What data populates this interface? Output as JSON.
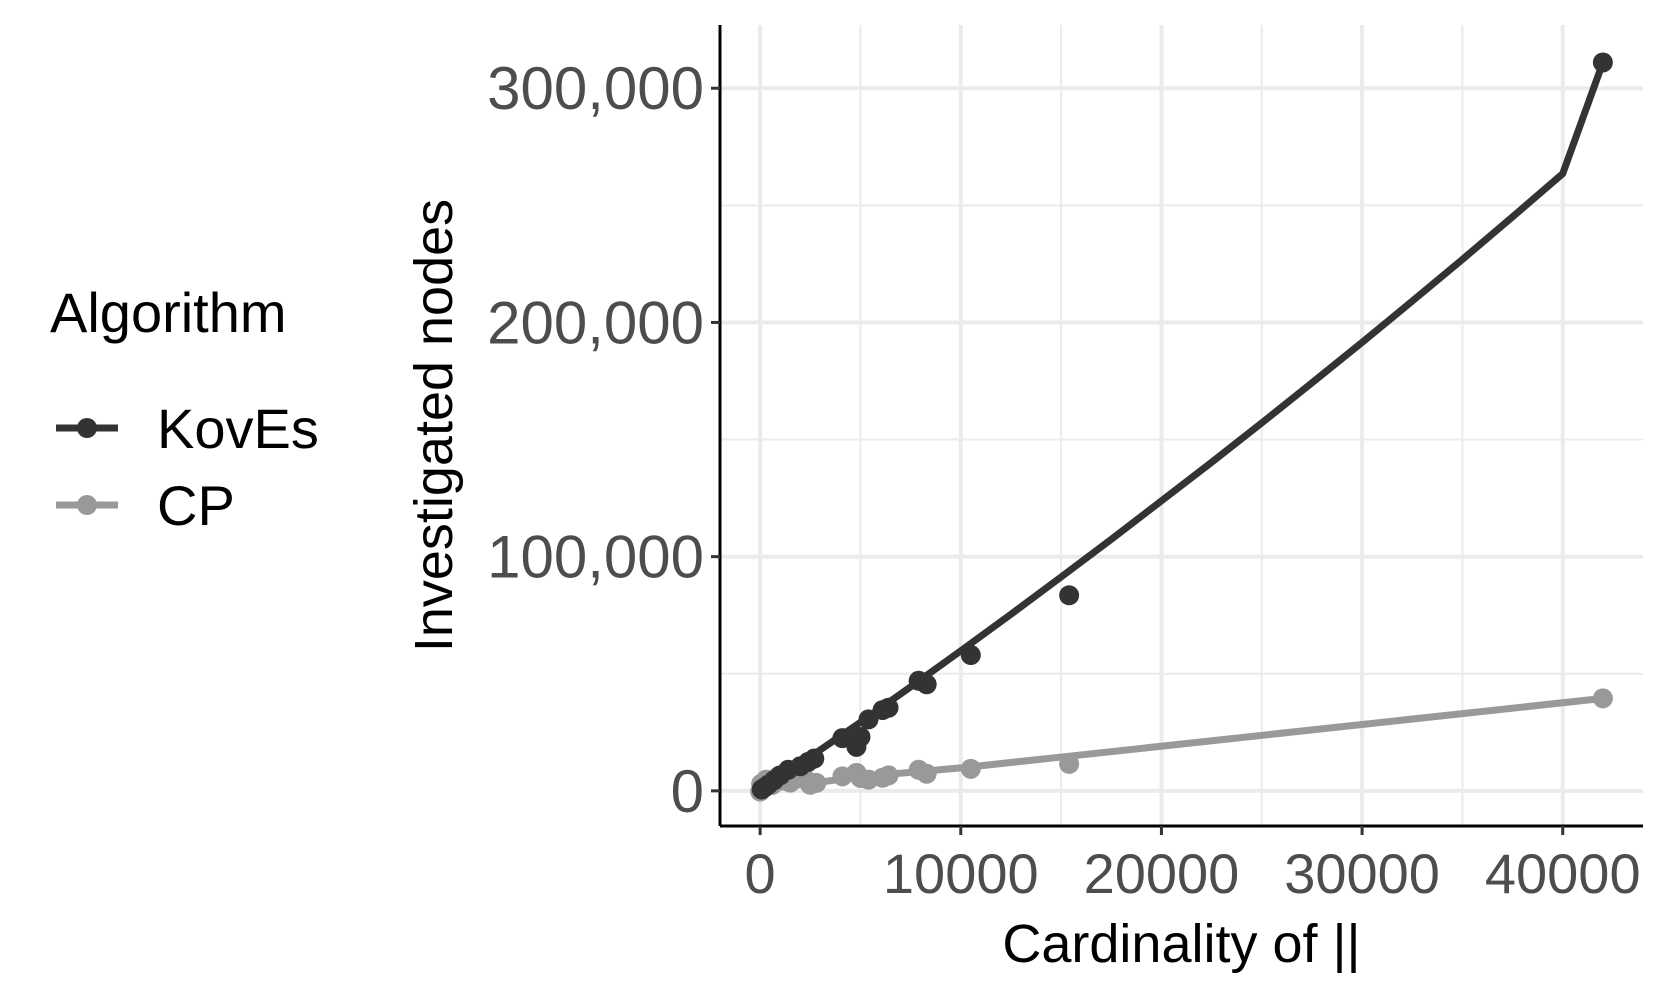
{
  "chart_data": {
    "type": "scatter",
    "title": "",
    "xlabel": "Cardinality of ||",
    "ylabel": "Investigated nodes",
    "xlim": [
      -2000,
      44000
    ],
    "ylim": [
      -15000,
      327000
    ],
    "xticks": [
      0,
      10000,
      20000,
      30000,
      40000
    ],
    "xtick_labels": [
      "0",
      "10000",
      "20000",
      "30000",
      "40000"
    ],
    "xminor": [
      5000,
      15000,
      25000,
      35000
    ],
    "yticks": [
      0,
      100000,
      200000,
      300000
    ],
    "ytick_labels": [
      "0",
      "100,000",
      "200,000",
      "300,000"
    ],
    "yminor": [
      50000,
      150000,
      250000
    ],
    "grid": true,
    "legend": {
      "title": "Algorithm",
      "position": "left",
      "entries": [
        "KovEs",
        "CP"
      ]
    },
    "series": [
      {
        "name": "KovEs",
        "color": "#333333",
        "points": [
          [
            80,
            600
          ],
          [
            200,
            1300
          ],
          [
            400,
            2600
          ],
          [
            700,
            4600
          ],
          [
            1000,
            6600
          ],
          [
            1400,
            9000
          ],
          [
            2000,
            10500
          ],
          [
            2400,
            12400
          ],
          [
            2700,
            13800
          ],
          [
            4100,
            22500
          ],
          [
            4800,
            18800
          ],
          [
            5000,
            23000
          ],
          [
            5400,
            30500
          ],
          [
            6100,
            34500
          ],
          [
            6400,
            35500
          ],
          [
            7900,
            47000
          ],
          [
            8300,
            45500
          ],
          [
            10500,
            58000
          ],
          [
            15400,
            83500
          ],
          [
            42000,
            311000
          ]
        ],
        "fit": [
          [
            0,
            0
          ],
          [
            1500,
            8600
          ],
          [
            3000,
            17500
          ],
          [
            5000,
            29300
          ],
          [
            7500,
            44400
          ],
          [
            10000,
            59800
          ],
          [
            12500,
            75400
          ],
          [
            15000,
            91300
          ],
          [
            17500,
            107400
          ],
          [
            20000,
            123800
          ],
          [
            22500,
            140300
          ],
          [
            25000,
            157100
          ],
          [
            27500,
            174200
          ],
          [
            30000,
            191500
          ],
          [
            32500,
            209100
          ],
          [
            35000,
            226900
          ],
          [
            37500,
            245100
          ],
          [
            40000,
            263500
          ],
          [
            42000,
            311000
          ]
        ]
      },
      {
        "name": "CP",
        "color": "#999999",
        "points": [
          [
            0,
            -300
          ],
          [
            50,
            3000
          ],
          [
            100,
            1000
          ],
          [
            300,
            4800
          ],
          [
            600,
            2500
          ],
          [
            900,
            6200
          ],
          [
            1500,
            3500
          ],
          [
            2300,
            4600
          ],
          [
            2500,
            2600
          ],
          [
            2800,
            3400
          ],
          [
            4100,
            6200
          ],
          [
            4800,
            7700
          ],
          [
            5000,
            5500
          ],
          [
            5400,
            4800
          ],
          [
            6100,
            5600
          ],
          [
            6400,
            6600
          ],
          [
            7900,
            9000
          ],
          [
            8300,
            7300
          ],
          [
            10500,
            9400
          ],
          [
            15400,
            11500
          ],
          [
            42000,
            39500
          ]
        ],
        "fit": [
          [
            0,
            400
          ],
          [
            5000,
            6000
          ],
          [
            10000,
            9800
          ],
          [
            15400,
            14800
          ],
          [
            42000,
            39500
          ]
        ]
      }
    ]
  }
}
